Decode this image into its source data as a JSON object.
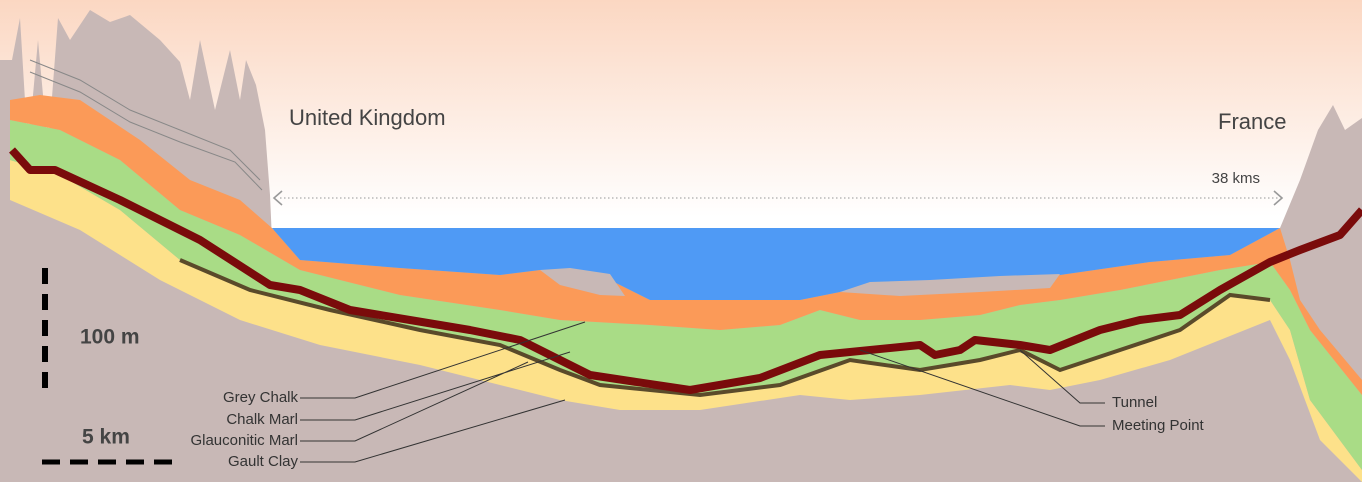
{
  "countries": {
    "left": "United Kingdom",
    "right": "France"
  },
  "distance": "38 kms",
  "scale": {
    "vertical": "100 m",
    "horizontal": "5 km"
  },
  "layers": [
    "Grey Chalk",
    "Chalk Marl",
    "Glauconitic Marl",
    "Gault Clay"
  ],
  "callouts": [
    "Tunnel",
    "Meeting Point"
  ]
}
